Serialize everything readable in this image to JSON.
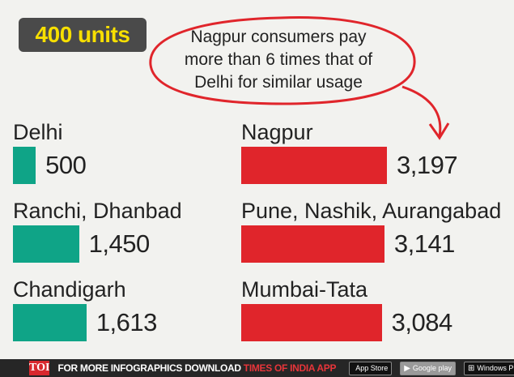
{
  "badge": {
    "label": "400 units"
  },
  "callout": {
    "lines": [
      "Nagpur consumers pay",
      "more than 6 times that of",
      "Delhi for similar usage"
    ]
  },
  "chart_data": {
    "type": "bar",
    "title": "400 units",
    "categories": [
      "Delhi",
      "Ranchi, Dhanbad",
      "Chandigarh",
      "Nagpur",
      "Pune, Nashik, Aurangabad",
      "Mumbai-Tata"
    ],
    "values": [
      500,
      1450,
      1613,
      3197,
      3141,
      3084
    ],
    "value_labels": [
      "500",
      "1,450",
      "1,613",
      "3,197",
      "3,141",
      "3,084"
    ],
    "colors": {
      "left_group": "#0fa487",
      "right_group": "#e0252b"
    },
    "annotation": "Nagpur consumers pay more than 6 times that of Delhi for similar usage"
  },
  "footer": {
    "logo": "TOI",
    "text_prefix": "FOR MORE  INFOGRAPHICS DOWNLOAD ",
    "text_highlight": "TIMES OF INDIA  APP",
    "stores": [
      {
        "icon": "apple-icon",
        "glyph": "",
        "label": "App Store",
        "small": "Available on the"
      },
      {
        "icon": "google-play-icon",
        "glyph": "▶",
        "label": "Google play",
        "small": ""
      },
      {
        "icon": "windows-icon",
        "glyph": "⊞",
        "label": "Windows Phone",
        "small": ""
      }
    ]
  }
}
